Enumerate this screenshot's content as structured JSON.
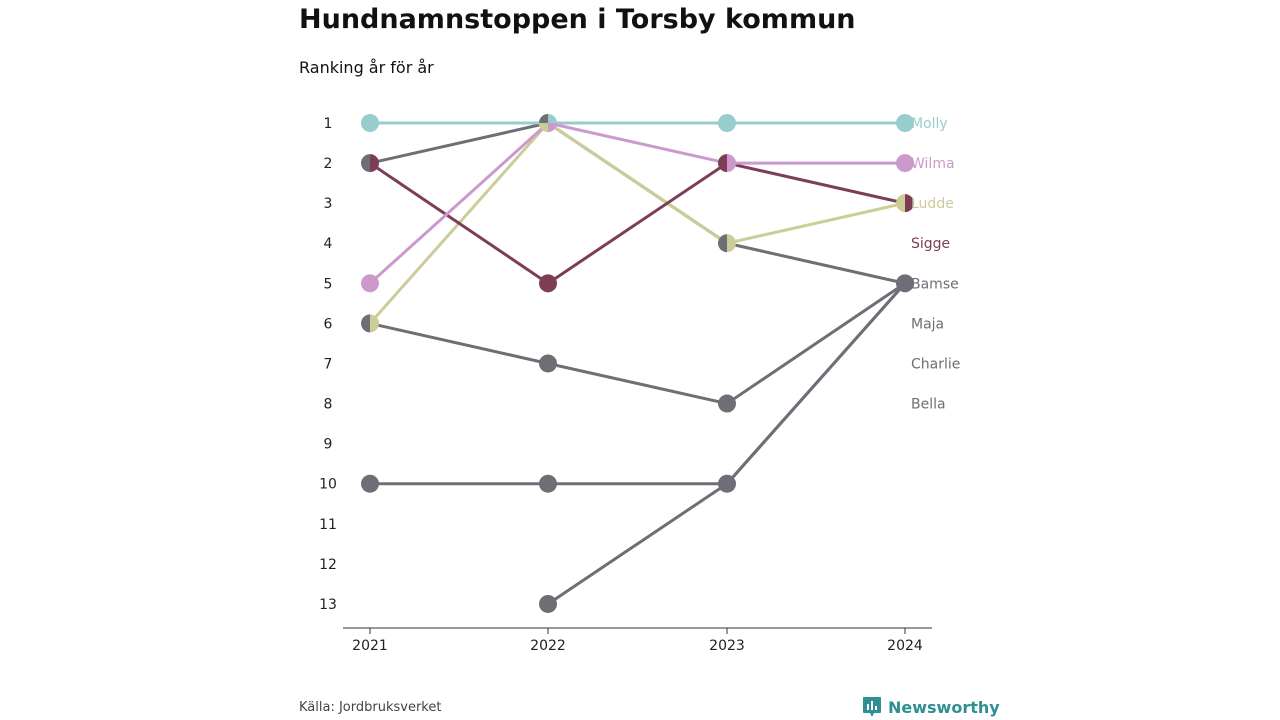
{
  "title": "Hundnamnstoppen i Torsby kommun",
  "subtitle": "Ranking år för år",
  "source": "Källa: Jordbruksverket",
  "brand": "Newsworthy",
  "brand_color": "#2f8f93",
  "chart_data": {
    "type": "line",
    "x": [
      "2021",
      "2022",
      "2023",
      "2024"
    ],
    "y_ticks": [
      1,
      2,
      3,
      4,
      5,
      6,
      7,
      8,
      9,
      10,
      11,
      12,
      13
    ],
    "ylim": [
      1,
      13
    ],
    "y_inverted": true,
    "grid": false,
    "series": [
      {
        "name": "Bella",
        "color": "#6e6e76",
        "values": [
          null,
          13,
          10,
          5
        ]
      },
      {
        "name": "Charlie",
        "color": "#6e6e76",
        "values": [
          10,
          10,
          10,
          5
        ]
      },
      {
        "name": "Maja",
        "color": "#6e6e76",
        "values": [
          6,
          7,
          8,
          5
        ]
      },
      {
        "name": "Bamse",
        "color": "#6e6e76",
        "values": [
          2,
          1,
          4,
          5
        ]
      },
      {
        "name": "Ludde",
        "color": "#cccc99",
        "values": [
          6,
          1,
          4,
          3
        ]
      },
      {
        "name": "Sigge",
        "color": "#7d3e55",
        "values": [
          2,
          5,
          2,
          3
        ]
      },
      {
        "name": "Wilma",
        "color": "#cc99cc",
        "values": [
          5,
          1,
          2,
          2
        ]
      },
      {
        "name": "Molly",
        "color": "#99cccc",
        "values": [
          1,
          1,
          1,
          1
        ]
      }
    ],
    "end_labels": [
      {
        "name": "Molly",
        "rank": 1,
        "color": "#99cccc"
      },
      {
        "name": "Wilma",
        "rank": 2,
        "color": "#cc99cc"
      },
      {
        "name": "Ludde",
        "rank": 3,
        "color": "#cccc99"
      },
      {
        "name": "Sigge",
        "rank": 4,
        "color": "#7d3e55"
      },
      {
        "name": "Bamse",
        "rank": 5,
        "color": "#6e6e76"
      },
      {
        "name": "Maja",
        "rank": 6,
        "color": "#6e6e76"
      },
      {
        "name": "Charlie",
        "rank": 7,
        "color": "#6e6e76"
      },
      {
        "name": "Bella",
        "rank": 8,
        "color": "#6e6e76"
      }
    ]
  }
}
